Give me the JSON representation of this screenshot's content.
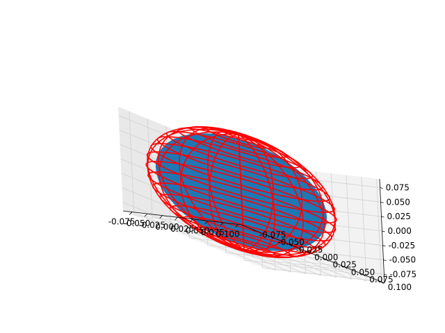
{
  "chart_data": {
    "type": "3d-surface-wireframe",
    "title": "",
    "surface": {
      "shape": "sphere",
      "center": [
        0,
        0,
        0
      ],
      "radius": 0.09,
      "color": "#1f77b4"
    },
    "wireframe": {
      "shape": "sphere",
      "center": [
        0,
        0,
        0
      ],
      "radius": 0.1,
      "color": "#ff0000"
    },
    "x_axis": {
      "label": "",
      "range": [
        -0.09,
        0.105
      ],
      "ticks": [
        "-0.075",
        "-0.050",
        "-0.025",
        "0.000",
        "0.025",
        "0.050",
        "0.075",
        "0.100"
      ]
    },
    "y_axis": {
      "label": "",
      "range": [
        -0.09,
        0.105
      ],
      "ticks": [
        "-0.075",
        "-0.050",
        "-0.025",
        "0.000",
        "0.025",
        "0.050",
        "0.075",
        "0.100"
      ]
    },
    "z_axis": {
      "label": "",
      "range": [
        -0.09,
        0.09
      ],
      "ticks": [
        "-0.075",
        "-0.050",
        "-0.025",
        "0.000",
        "0.025",
        "0.050",
        "0.075"
      ]
    },
    "grid": true,
    "pane_color": "#f2f2f2"
  }
}
